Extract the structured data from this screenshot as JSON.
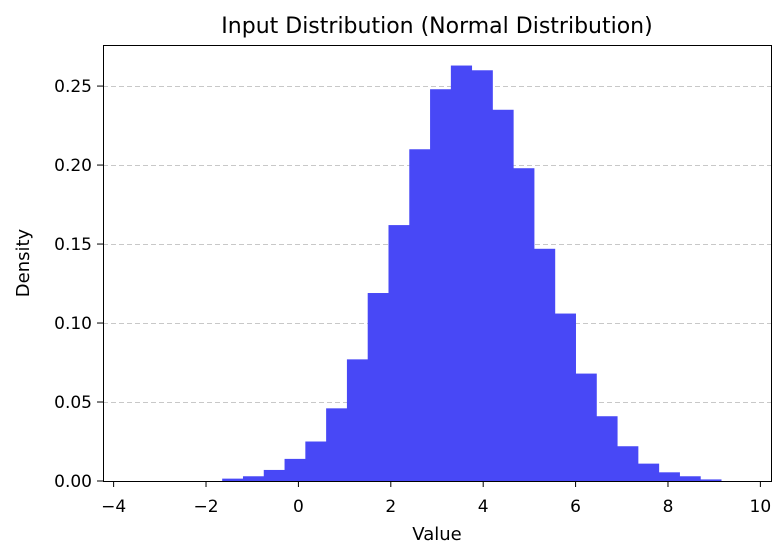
{
  "chart_data": {
    "type": "bar",
    "title": "Input Distribution (Normal Distribution)",
    "xlabel": "Value",
    "ylabel": "Density",
    "xlim": [
      -4.23,
      10.23
    ],
    "ylim": [
      0,
      0.276
    ],
    "x_ticks": [
      -4,
      -2,
      0,
      2,
      4,
      6,
      8,
      10
    ],
    "x_tick_labels": [
      "−4",
      "−2",
      "0",
      "2",
      "4",
      "6",
      "8",
      "10"
    ],
    "y_ticks": [
      0.0,
      0.05,
      0.1,
      0.15,
      0.2,
      0.25
    ],
    "y_tick_labels": [
      "0.00",
      "0.05",
      "0.10",
      "0.15",
      "0.20",
      "0.25"
    ],
    "grid": {
      "axis": "y",
      "style": "dashed"
    },
    "bar_color": "#4848f6",
    "bin_edges": [
      -3.9,
      -3.45,
      -3.0,
      -2.55,
      -2.1,
      -1.65,
      -1.2,
      -0.75,
      -0.3,
      0.15,
      0.6,
      1.05,
      1.5,
      1.95,
      2.4,
      2.85,
      3.3,
      3.75,
      4.2,
      4.65,
      5.1,
      5.55,
      6.0,
      6.45,
      6.9,
      7.35,
      7.8,
      8.25,
      8.7,
      9.15,
      9.6
    ],
    "values": [
      0.0,
      0.0,
      0.0,
      0.0,
      0.0,
      0.0015,
      0.003,
      0.007,
      0.014,
      0.025,
      0.046,
      0.077,
      0.119,
      0.162,
      0.21,
      0.248,
      0.263,
      0.26,
      0.235,
      0.198,
      0.147,
      0.106,
      0.068,
      0.041,
      0.022,
      0.011,
      0.0055,
      0.003,
      0.001,
      0.0
    ]
  }
}
